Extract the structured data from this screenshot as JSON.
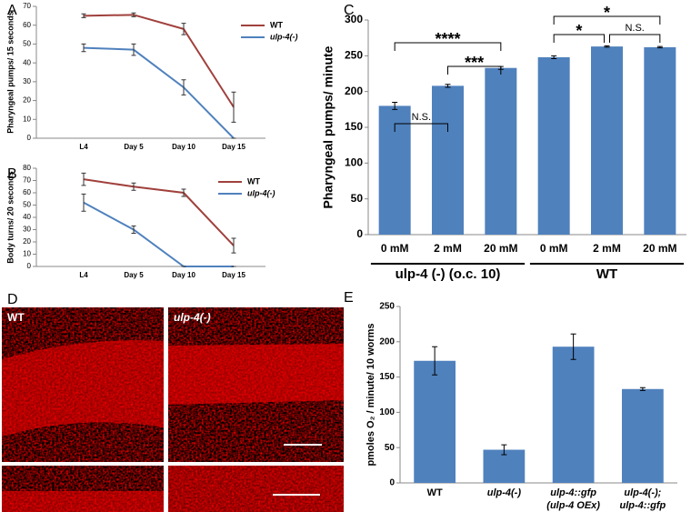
{
  "chart_data": [
    {
      "type": "line",
      "panel": "A",
      "y_label": "Pharyngeal pumps/ 15 seconds",
      "categories": [
        "L4",
        "Day 5",
        "Day 10",
        "Day 15"
      ],
      "ylim": [
        0,
        70
      ],
      "yticks": [
        0,
        10,
        20,
        30,
        40,
        50,
        60,
        70
      ],
      "legend": "upper right",
      "series": [
        {
          "name": "WT",
          "color": "#a0403c",
          "values": [
            65,
            65.5,
            58,
            16.5
          ],
          "errors": [
            1,
            1,
            3,
            8
          ]
        },
        {
          "name": "ulp-4(-)",
          "color": "#4f81bd",
          "values": [
            48,
            47,
            27,
            0
          ],
          "errors": [
            2,
            3,
            4,
            0
          ]
        }
      ]
    },
    {
      "type": "line",
      "panel": "B",
      "y_label": "Body turns/ 20 seconds",
      "categories": [
        "L4",
        "Day 5",
        "Day 10",
        "Day 15"
      ],
      "ylim": [
        0,
        80
      ],
      "yticks": [
        0,
        10,
        20,
        30,
        40,
        50,
        60,
        70,
        80
      ],
      "legend": "upper right",
      "series": [
        {
          "name": "WT",
          "color": "#a0403c",
          "values": [
            71,
            65,
            60,
            17
          ],
          "errors": [
            5,
            3,
            3,
            6
          ]
        },
        {
          "name": "ulp-4(-)",
          "color": "#4f81bd",
          "values": [
            52,
            30,
            0,
            0
          ],
          "errors": [
            7,
            3,
            0,
            0
          ]
        }
      ]
    },
    {
      "type": "bar",
      "panel": "C",
      "y_label": "Pharyngeal pumps/ minute",
      "color": "#4f81bd",
      "categories": [
        "0 mM",
        "2 mM",
        "20 mM",
        "0 mM",
        "2 mM",
        "20 mM"
      ],
      "values": [
        180,
        208,
        233,
        248,
        263,
        262
      ],
      "errors": [
        5,
        2,
        2,
        2,
        1,
        1
      ],
      "groups": [
        "ulp-4 (-) (o.c. 10)",
        "WT"
      ],
      "annotations": [
        "N.S.",
        "****",
        "***",
        "*",
        "*",
        "N.S."
      ],
      "ylim": [
        0,
        300
      ],
      "yticks": [
        0,
        50,
        100,
        150,
        200,
        250,
        300
      ]
    },
    {
      "type": "bar",
      "panel": "E",
      "y_label": "pmoles O₂ / minute/ 10 worms",
      "color": "#4f81bd",
      "categories": [
        [
          "WT"
        ],
        [
          "ulp-4(-)"
        ],
        [
          "ulp-4::gfp",
          "(ulp-4 OEx)"
        ],
        [
          "ulp-4(-);",
          "ulp-4::gfp"
        ]
      ],
      "values": [
        173,
        47,
        193,
        133
      ],
      "errors": [
        20,
        7,
        18,
        2
      ],
      "ylim": [
        0,
        250
      ],
      "yticks": [
        0,
        50,
        100,
        150,
        200,
        250
      ]
    }
  ],
  "images": {
    "panel": "D",
    "labels": [
      "WT",
      "ulp-4(-)"
    ]
  }
}
